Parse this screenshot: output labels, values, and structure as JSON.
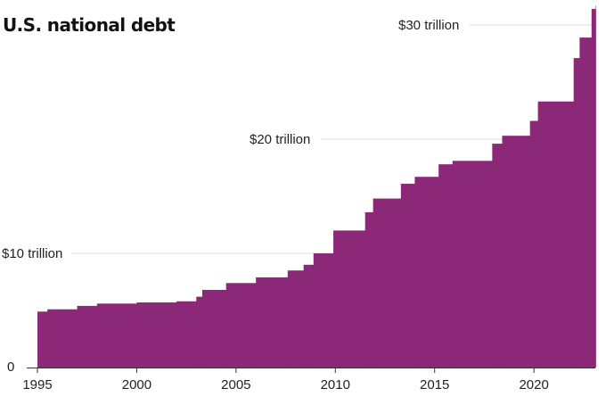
{
  "chart_data": {
    "type": "area",
    "title": "U.S. national debt",
    "xlabel": "",
    "ylabel": "",
    "xlim": [
      1995,
      2023
    ],
    "ylim": [
      0,
      31.7
    ],
    "x_ticks": [
      {
        "value": 1995,
        "label": "1995"
      },
      {
        "value": 2000,
        "label": "2000"
      },
      {
        "value": 2005,
        "label": "2005"
      },
      {
        "value": 2010,
        "label": "2010"
      },
      {
        "value": 2015,
        "label": "2015"
      },
      {
        "value": 2020,
        "label": "2020"
      }
    ],
    "y_ticks": [
      {
        "value": 0,
        "label": "0"
      },
      {
        "value": 10,
        "label": "$10 trillion"
      },
      {
        "value": 20,
        "label": "$20 trillion"
      },
      {
        "value": 30,
        "label": "$30 trillion"
      }
    ],
    "grid": true,
    "color": "#8b2877",
    "step_x": [
      1995.0,
      1995.5,
      1997.0,
      1998.0,
      2000.0,
      2002.0,
      2003.0,
      2003.3,
      2004.5,
      2006.0,
      2007.6,
      2008.4,
      2008.9,
      2009.9,
      2011.5,
      2011.9,
      2013.3,
      2014.0,
      2015.2,
      2015.9,
      2017.9,
      2018.4,
      2019.8,
      2020.2,
      2022.0,
      2022.3,
      2022.9,
      2023.1
    ],
    "step_y": [
      4.9,
      5.1,
      5.4,
      5.6,
      5.7,
      5.8,
      6.2,
      6.8,
      7.4,
      7.9,
      8.5,
      9.0,
      10.0,
      12.0,
      13.6,
      14.8,
      16.1,
      16.7,
      17.8,
      18.1,
      19.6,
      20.3,
      21.6,
      23.3,
      27.1,
      28.9,
      31.4,
      31.7
    ]
  }
}
